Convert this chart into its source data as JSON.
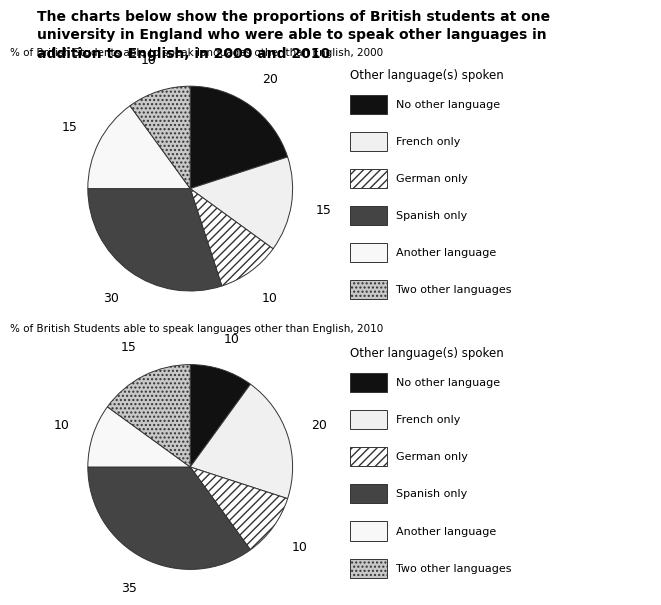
{
  "title": "The charts below show the proportions of British students at one\nuniversity in England who were able to speak other languages in\naddition to English, in 2000 and 2010",
  "chart1_title": "% of British Students able to speak languages other than English, 2000",
  "chart2_title": "% of British Students able to speak languages other than English, 2010",
  "legend_title": "Other language(s) spoken",
  "legend_labels": [
    "No other language",
    "French only",
    "German only",
    "Spanish only",
    "Another language",
    "Two other languages"
  ],
  "data_2000": [
    20,
    15,
    10,
    30,
    15,
    10
  ],
  "data_2010": [
    10,
    20,
    10,
    35,
    10,
    15
  ],
  "labels_2000": [
    "20",
    "15",
    "10",
    "30",
    "15",
    "10"
  ],
  "labels_2010": [
    "10",
    "20",
    "10",
    "35",
    "10",
    "15"
  ],
  "face_colors": [
    "#111111",
    "#f0f0f0",
    "#ffffff",
    "#444444",
    "#f8f8f8",
    "#c8c8c8"
  ],
  "hatch_patterns": [
    "",
    "",
    "////",
    "",
    "",
    "...."
  ],
  "background_color": "#ffffff"
}
